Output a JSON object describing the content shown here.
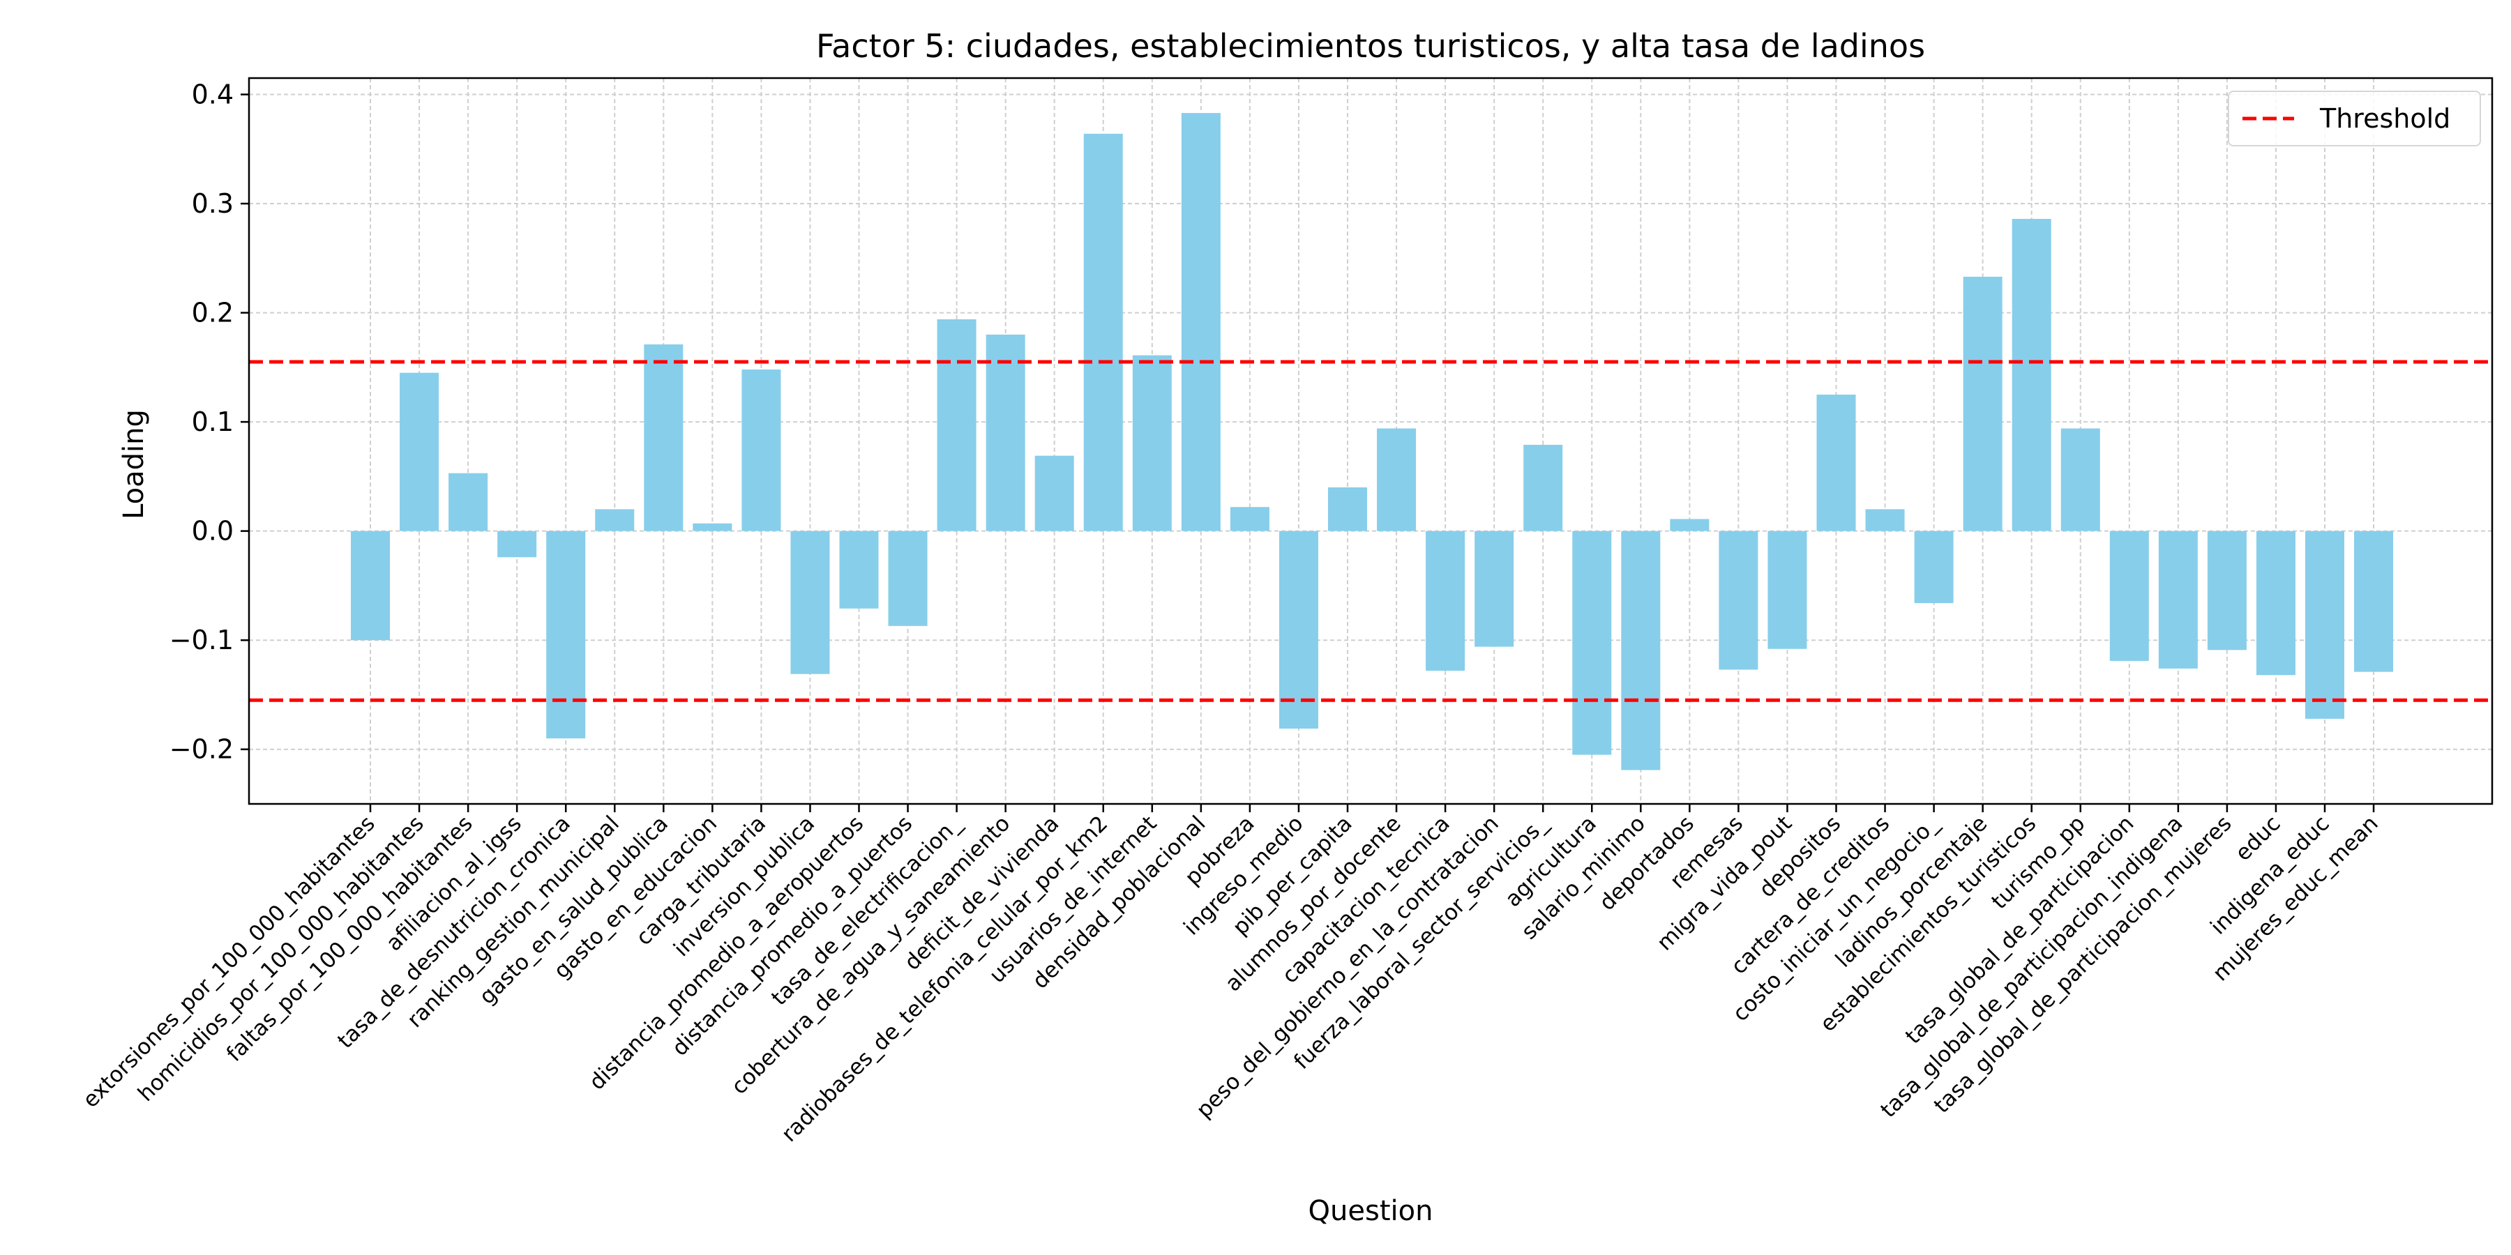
{
  "chart_data": {
    "type": "bar",
    "title": "Factor 5: ciudades, establecimientos turisticos, y alta tasa de ladinos",
    "xlabel": "Question",
    "ylabel": "Loading",
    "ylim": [
      -0.25,
      0.415
    ],
    "yticks": [
      -0.2,
      -0.1,
      0.0,
      0.1,
      0.2,
      0.3,
      0.4
    ],
    "ytick_labels": [
      "−0.2",
      "−0.1",
      "0.0",
      "0.1",
      "0.2",
      "0.3",
      "0.4"
    ],
    "grid": true,
    "legend_position": "top-right",
    "bar_color": "#87CEEB",
    "threshold_color": "#FF0000",
    "threshold": {
      "name": "Threshold",
      "values": [
        0.155,
        -0.155
      ]
    },
    "categories": [
      "extorsiones_por_100_000_habitantes",
      "homicidios_por_100_000_habitantes",
      "faltas_por_100_000_habitantes",
      "afiliacion_al_igss",
      "tasa_de_desnutricion_cronica",
      "ranking_gestion_municipal",
      "gasto_en_salud_publica",
      "gasto_en_educacion",
      "carga_tributaria",
      "inversion_publica",
      "distancia_promedio_a_aeropuertos",
      "distancia_promedio_a_puertos",
      "tasa_de_electrificacion_",
      "cobertura_de_agua_y_saneamiento",
      "deficit_de_vivienda",
      "radiobases_de_telefonia_celular_por_km2",
      "usuarios_de_internet",
      "densidad_poblacional",
      "pobreza",
      "ingreso_medio",
      "pib_per_capita",
      "alumnos_por_docente",
      "capacitacion_tecnica",
      "peso_del_gobierno_en_la_contratacion",
      "fuerza_laboral_sector_servicios_",
      "agricultura",
      "salario_minimo",
      "deportados",
      "remesas",
      "migra_vida_pout",
      "depositos",
      "cartera_de_creditos",
      "costo_iniciar_un_negocio_",
      "ladinos_porcentaje",
      "establecimientos_turisticos",
      "turismo_pp",
      "tasa_global_de_participacion",
      "tasa_global_de_participacion_indigena",
      "tasa_global_de_participacion_mujeres",
      "educ",
      "indigena_educ",
      "mujeres_educ_mean"
    ],
    "values": [
      -0.1,
      0.145,
      0.053,
      -0.024,
      -0.19,
      0.02,
      0.171,
      0.007,
      0.148,
      -0.131,
      -0.071,
      -0.087,
      0.194,
      0.18,
      0.069,
      0.364,
      0.161,
      0.383,
      0.022,
      -0.181,
      0.04,
      0.094,
      -0.128,
      -0.106,
      0.079,
      -0.205,
      -0.219,
      0.011,
      -0.127,
      -0.108,
      0.125,
      0.02,
      -0.066,
      0.233,
      0.286,
      0.094,
      -0.119,
      -0.126,
      -0.109,
      -0.132,
      -0.172,
      -0.129
    ]
  }
}
